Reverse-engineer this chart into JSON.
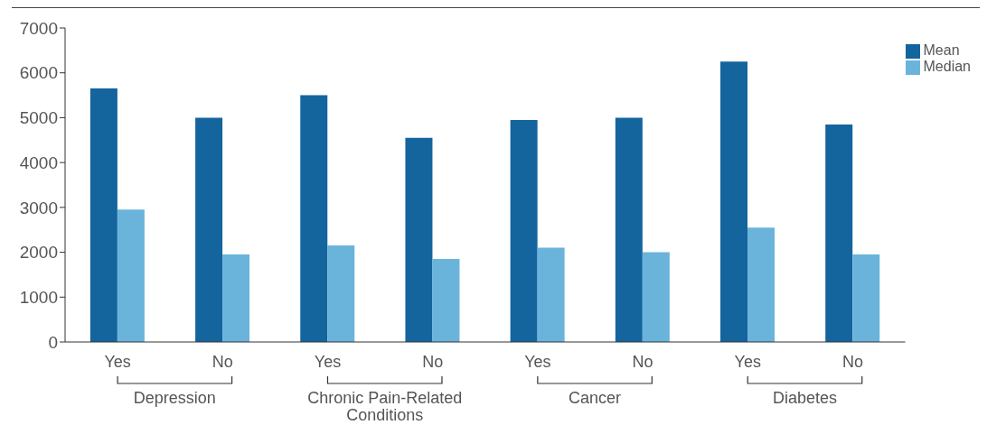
{
  "chart_data": {
    "type": "bar",
    "categories": [
      "Yes",
      "No",
      "Yes",
      "No",
      "Yes",
      "No",
      "Yes",
      "No"
    ],
    "annotations": [
      "Depression",
      "Chronic Pain-Related Conditions",
      "Cancer",
      "Diabetes"
    ],
    "series": [
      {
        "name": "Mean",
        "color": "#14649e",
        "values": [
          5650,
          5000,
          5500,
          4550,
          4950,
          5000,
          6250,
          4850
        ]
      },
      {
        "name": "Median",
        "color": "#6ab4dc",
        "values": [
          2950,
          1950,
          2150,
          1850,
          2100,
          2000,
          2550,
          1950
        ]
      }
    ],
    "ylim": [
      0,
      7000
    ],
    "yticks": [
      0,
      1000,
      2000,
      3000,
      4000,
      5000,
      6000,
      7000
    ],
    "grid": false,
    "legend": "top right"
  }
}
